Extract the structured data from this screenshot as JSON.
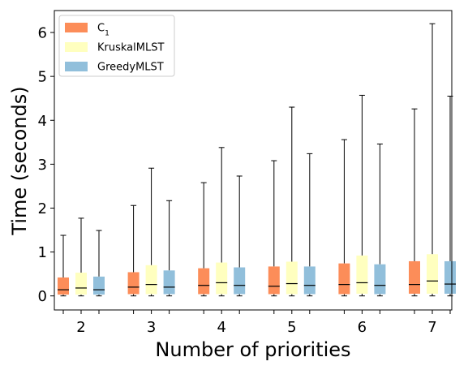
{
  "chart_data": {
    "type": "boxplot",
    "xlabel": "Number of priorities",
    "ylabel": "Time (seconds)",
    "ylim": [
      -0.32,
      6.5
    ],
    "yticks": [
      0,
      1,
      2,
      3,
      4,
      5,
      6
    ],
    "categories": [
      "2",
      "3",
      "4",
      "5",
      "6",
      "7"
    ],
    "legend_position": "top-left",
    "series": [
      {
        "name": "C",
        "name_subscript": "1",
        "color": "#fc8d59",
        "boxes": [
          {
            "min": 0,
            "q1": 0.03,
            "median": 0.14,
            "q3": 0.42,
            "max": 1.38
          },
          {
            "min": 0,
            "q1": 0.04,
            "median": 0.2,
            "q3": 0.54,
            "max": 2.06
          },
          {
            "min": 0,
            "q1": 0.04,
            "median": 0.24,
            "q3": 0.63,
            "max": 2.58
          },
          {
            "min": 0,
            "q1": 0.04,
            "median": 0.22,
            "q3": 0.67,
            "max": 3.08
          },
          {
            "min": 0,
            "q1": 0.04,
            "median": 0.26,
            "q3": 0.74,
            "max": 3.56
          },
          {
            "min": 0,
            "q1": 0.05,
            "median": 0.26,
            "q3": 0.79,
            "max": 4.26
          }
        ]
      },
      {
        "name": "KruskalMLST",
        "color": "#ffffbf",
        "boxes": [
          {
            "min": 0,
            "q1": 0.03,
            "median": 0.18,
            "q3": 0.53,
            "max": 1.77
          },
          {
            "min": 0,
            "q1": 0.04,
            "median": 0.26,
            "q3": 0.7,
            "max": 2.91
          },
          {
            "min": 0,
            "q1": 0.04,
            "median": 0.3,
            "q3": 0.76,
            "max": 3.38
          },
          {
            "min": 0,
            "q1": 0.04,
            "median": 0.28,
            "q3": 0.78,
            "max": 4.3
          },
          {
            "min": 0,
            "q1": 0.05,
            "median": 0.3,
            "q3": 0.92,
            "max": 4.57
          },
          {
            "min": 0,
            "q1": 0.05,
            "median": 0.34,
            "q3": 0.95,
            "max": 6.2
          }
        ]
      },
      {
        "name": "GreedyMLST",
        "color": "#91bfdb",
        "boxes": [
          {
            "min": 0,
            "q1": 0.03,
            "median": 0.14,
            "q3": 0.44,
            "max": 1.49
          },
          {
            "min": 0,
            "q1": 0.04,
            "median": 0.2,
            "q3": 0.58,
            "max": 2.17
          },
          {
            "min": 0,
            "q1": 0.04,
            "median": 0.24,
            "q3": 0.65,
            "max": 2.73
          },
          {
            "min": 0,
            "q1": 0.04,
            "median": 0.24,
            "q3": 0.67,
            "max": 3.24
          },
          {
            "min": 0,
            "q1": 0.04,
            "median": 0.24,
            "q3": 0.72,
            "max": 3.46
          },
          {
            "min": 0,
            "q1": 0.05,
            "median": 0.27,
            "q3": 0.79,
            "max": 4.55
          }
        ]
      }
    ]
  }
}
